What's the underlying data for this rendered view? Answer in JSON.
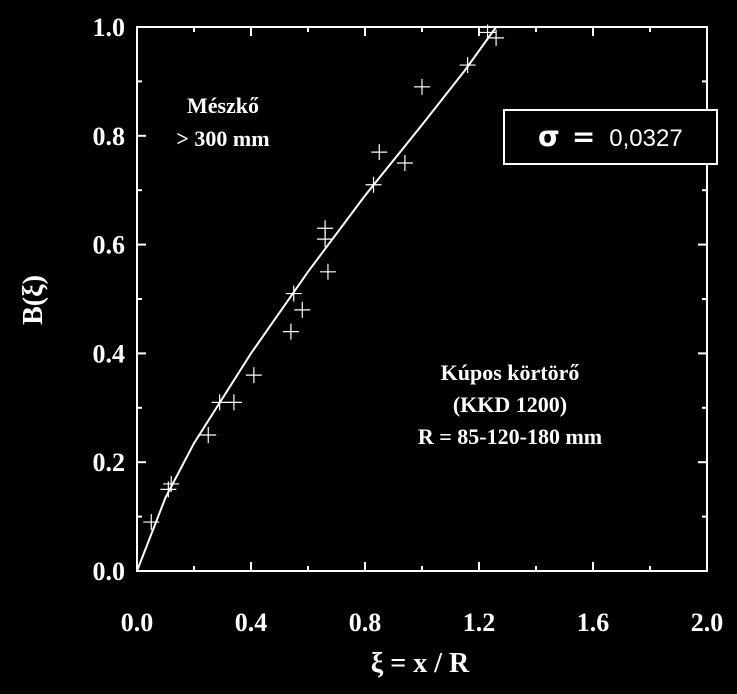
{
  "chart_data": {
    "type": "scatter",
    "xlabel": "ξ = x / R",
    "ylabel": "B(ξ)",
    "xlim": [
      0.0,
      2.0
    ],
    "ylim": [
      0.0,
      1.0
    ],
    "x_ticks": [
      "0.0",
      "0.4",
      "0.8",
      "1.2",
      "1.6",
      "2.0"
    ],
    "y_ticks": [
      "0.0",
      "0.2",
      "0.4",
      "0.6",
      "0.8",
      "1.0"
    ],
    "grid": false,
    "annotations": {
      "material_line1": "Mészkő",
      "material_line2": "> 300 mm",
      "machine_line1": "Kúpos körtörő",
      "machine_line2": "(KKD 1200)",
      "machine_line3": "R = 85-120-180 mm"
    },
    "sigma_box": {
      "symbol": "σ",
      "equals": "=",
      "value": "0,0327"
    },
    "points": [
      {
        "x": 0.05,
        "y": 0.09
      },
      {
        "x": 0.11,
        "y": 0.15
      },
      {
        "x": 0.12,
        "y": 0.16
      },
      {
        "x": 0.25,
        "y": 0.25
      },
      {
        "x": 0.29,
        "y": 0.31
      },
      {
        "x": 0.34,
        "y": 0.31
      },
      {
        "x": 0.41,
        "y": 0.36
      },
      {
        "x": 0.54,
        "y": 0.44
      },
      {
        "x": 0.55,
        "y": 0.51
      },
      {
        "x": 0.58,
        "y": 0.48
      },
      {
        "x": 0.66,
        "y": 0.63
      },
      {
        "x": 0.66,
        "y": 0.61
      },
      {
        "x": 0.67,
        "y": 0.55
      },
      {
        "x": 0.83,
        "y": 0.71
      },
      {
        "x": 0.85,
        "y": 0.77
      },
      {
        "x": 0.94,
        "y": 0.75
      },
      {
        "x": 1.0,
        "y": 0.89
      },
      {
        "x": 1.16,
        "y": 0.93
      },
      {
        "x": 1.23,
        "y": 0.99
      },
      {
        "x": 1.26,
        "y": 0.98
      }
    ],
    "fit_curve": [
      {
        "x": 0.0,
        "y": 0.0
      },
      {
        "x": 0.1,
        "y": 0.135
      },
      {
        "x": 0.2,
        "y": 0.235
      },
      {
        "x": 0.4,
        "y": 0.4
      },
      {
        "x": 0.6,
        "y": 0.55
      },
      {
        "x": 0.8,
        "y": 0.69
      },
      {
        "x": 1.0,
        "y": 0.82
      },
      {
        "x": 1.15,
        "y": 0.92
      },
      {
        "x": 1.26,
        "y": 1.0
      }
    ]
  }
}
